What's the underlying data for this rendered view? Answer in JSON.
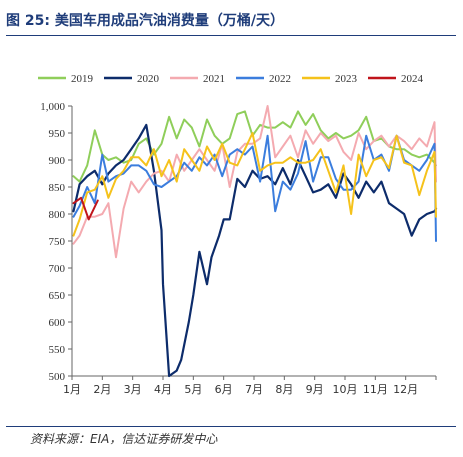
{
  "figure": {
    "title": "图 25:  美国车用成品汽油消费量（万桶/天）",
    "source": "资料来源：EIA，信达证券研发中心"
  },
  "colors": {
    "2019": "#8fce5a",
    "2020": "#0d2c6b",
    "2021": "#f4aab0",
    "2022": "#3b7ddd",
    "2023": "#f5c21b",
    "2024": "#c0141b",
    "title": "#1f3d7a",
    "axis": "#666666"
  },
  "chart_data": {
    "type": "line",
    "xlabel": "",
    "ylabel": "",
    "x_range_months": [
      1,
      13
    ],
    "ylim": [
      500,
      1000
    ],
    "yticks": [
      "500",
      "550",
      "600",
      "650",
      "700",
      "750",
      "800",
      "850",
      "900",
      "950",
      "1,000"
    ],
    "xticks": [
      "1月",
      "2月",
      "3月",
      "4月",
      "5月",
      "6月",
      "7月",
      "8月",
      "9月",
      "10月",
      "11月",
      "12月"
    ],
    "grid": false,
    "legend_position": "top",
    "series": [
      {
        "name": "2019",
        "x": [
          1.05,
          1.25,
          1.5,
          1.75,
          2.0,
          2.2,
          2.45,
          2.7,
          2.95,
          3.2,
          3.45,
          3.7,
          3.95,
          4.2,
          4.45,
          4.7,
          4.95,
          5.2,
          5.45,
          5.7,
          5.95,
          6.2,
          6.45,
          6.7,
          6.95,
          7.2,
          7.45,
          7.7,
          7.95,
          8.2,
          8.45,
          8.7,
          8.95,
          9.2,
          9.45,
          9.7,
          9.95,
          10.2,
          10.45,
          10.7,
          10.95,
          11.2,
          11.45,
          11.7,
          11.95,
          12.2,
          12.45,
          12.7,
          12.95,
          13.0
        ],
        "values": [
          870,
          860,
          890,
          955,
          910,
          900,
          905,
          895,
          900,
          930,
          940,
          910,
          930,
          980,
          940,
          975,
          960,
          925,
          975,
          945,
          930,
          940,
          985,
          990,
          945,
          965,
          960,
          960,
          970,
          960,
          990,
          965,
          985,
          955,
          940,
          950,
          940,
          945,
          955,
          980,
          935,
          940,
          925,
          920,
          920,
          910,
          905,
          910,
          895,
          890
        ]
      },
      {
        "name": "2020",
        "x": [
          1.05,
          1.25,
          1.5,
          1.75,
          2.0,
          2.2,
          2.45,
          2.7,
          2.95,
          3.2,
          3.45,
          3.7,
          3.95,
          4.0,
          4.2,
          4.45,
          4.6,
          4.85,
          5.0,
          5.2,
          5.45,
          5.6,
          5.85,
          6.0,
          6.2,
          6.45,
          6.7,
          6.95,
          7.2,
          7.45,
          7.7,
          7.95,
          8.2,
          8.45,
          8.7,
          8.95,
          9.2,
          9.45,
          9.7,
          9.95,
          10.2,
          10.45,
          10.7,
          10.95,
          11.2,
          11.45,
          11.7,
          11.95,
          12.2,
          12.45,
          12.7,
          12.95,
          13.0
        ],
        "values": [
          805,
          855,
          870,
          880,
          855,
          875,
          890,
          900,
          920,
          940,
          965,
          880,
          770,
          670,
          500,
          510,
          530,
          600,
          650,
          730,
          670,
          720,
          760,
          790,
          790,
          865,
          850,
          880,
          865,
          870,
          855,
          885,
          855,
          900,
          870,
          840,
          845,
          855,
          830,
          875,
          855,
          830,
          860,
          840,
          860,
          820,
          810,
          800,
          760,
          790,
          800,
          805,
          810
        ]
      },
      {
        "name": "2021",
        "x": [
          1.05,
          1.25,
          1.5,
          1.75,
          2.0,
          2.2,
          2.45,
          2.7,
          2.95,
          3.2,
          3.45,
          3.7,
          3.95,
          4.2,
          4.45,
          4.7,
          4.95,
          5.2,
          5.45,
          5.7,
          5.95,
          6.2,
          6.45,
          6.7,
          6.95,
          7.2,
          7.45,
          7.7,
          7.95,
          8.2,
          8.45,
          8.7,
          8.95,
          9.2,
          9.45,
          9.7,
          9.95,
          10.2,
          10.45,
          10.7,
          10.95,
          11.2,
          11.45,
          11.7,
          11.95,
          12.2,
          12.45,
          12.7,
          12.95,
          13.0
        ],
        "values": [
          745,
          760,
          795,
          795,
          800,
          820,
          720,
          810,
          860,
          840,
          860,
          875,
          880,
          860,
          910,
          880,
          900,
          920,
          900,
          880,
          930,
          850,
          915,
          930,
          930,
          940,
          1000,
          905,
          925,
          945,
          905,
          955,
          930,
          950,
          935,
          945,
          915,
          900,
          950,
          920,
          935,
          945,
          925,
          945,
          935,
          920,
          940,
          925,
          970,
          860
        ]
      },
      {
        "name": "2022",
        "x": [
          1.05,
          1.25,
          1.5,
          1.75,
          2.0,
          2.2,
          2.45,
          2.7,
          2.95,
          3.2,
          3.45,
          3.7,
          3.95,
          4.2,
          4.45,
          4.7,
          4.95,
          5.2,
          5.45,
          5.7,
          5.95,
          6.2,
          6.45,
          6.7,
          6.95,
          7.2,
          7.45,
          7.7,
          7.95,
          8.2,
          8.45,
          8.7,
          8.95,
          9.2,
          9.45,
          9.7,
          9.95,
          10.2,
          10.45,
          10.7,
          10.95,
          11.2,
          11.45,
          11.7,
          11.95,
          12.2,
          12.45,
          12.7,
          12.95,
          13.0
        ],
        "values": [
          795,
          815,
          850,
          820,
          910,
          860,
          870,
          875,
          890,
          890,
          880,
          855,
          850,
          860,
          870,
          895,
          880,
          905,
          890,
          910,
          870,
          910,
          920,
          910,
          925,
          860,
          945,
          805,
          860,
          845,
          875,
          935,
          860,
          905,
          905,
          865,
          845,
          845,
          860,
          945,
          900,
          910,
          880,
          945,
          900,
          890,
          880,
          900,
          930,
          750
        ]
      },
      {
        "name": "2023",
        "x": [
          1.05,
          1.25,
          1.5,
          1.75,
          2.0,
          2.2,
          2.45,
          2.7,
          2.95,
          3.2,
          3.45,
          3.7,
          3.95,
          4.2,
          4.45,
          4.7,
          4.95,
          5.2,
          5.45,
          5.7,
          5.95,
          6.2,
          6.45,
          6.7,
          6.95,
          7.2,
          7.45,
          7.7,
          7.95,
          8.2,
          8.45,
          8.7,
          8.95,
          9.2,
          9.45,
          9.7,
          9.95,
          10.2,
          10.45,
          10.7,
          10.95,
          11.2,
          11.45,
          11.7,
          11.95,
          12.2,
          12.45,
          12.7,
          12.95,
          13.0
        ],
        "values": [
          760,
          790,
          840,
          845,
          870,
          830,
          865,
          880,
          905,
          905,
          890,
          920,
          870,
          900,
          860,
          920,
          900,
          880,
          925,
          900,
          930,
          895,
          890,
          920,
          950,
          880,
          890,
          895,
          895,
          905,
          895,
          895,
          900,
          920,
          880,
          840,
          890,
          800,
          910,
          870,
          900,
          905,
          885,
          945,
          895,
          890,
          835,
          880,
          915,
          795
        ]
      },
      {
        "name": "2024",
        "x": [
          1.05,
          1.3,
          1.55,
          1.85
        ],
        "values": [
          820,
          830,
          790,
          825
        ]
      }
    ]
  }
}
